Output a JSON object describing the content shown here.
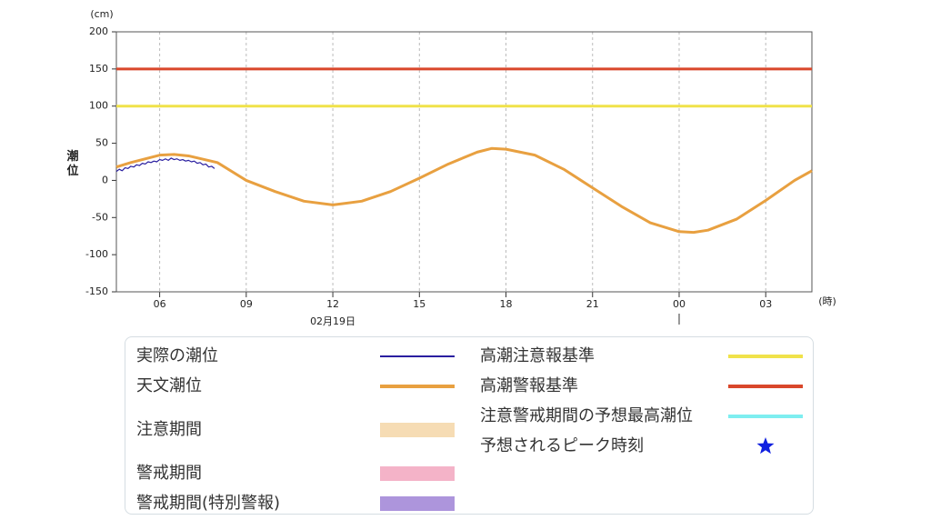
{
  "chart_data": {
    "type": "line",
    "y_label": "潮位",
    "y_unit": "(cm)",
    "x_unit": "(時)",
    "date_label": "02月19日",
    "xlim": [
      4.5,
      28.6
    ],
    "xticks": [
      {
        "value": 6,
        "label": "06"
      },
      {
        "value": 9,
        "label": "09"
      },
      12,
      15,
      18,
      21,
      {
        "value": 24,
        "label": "00"
      },
      {
        "value": 27,
        "label": "03"
      }
    ],
    "date_tick": 12,
    "day_tick": 24,
    "ylim": [
      -150,
      200
    ],
    "yticks": [
      200,
      150,
      100,
      50,
      0,
      -50,
      -100,
      -150
    ],
    "grid": "x",
    "thresholds": [
      {
        "name": "高潮警報基準",
        "value": 150,
        "color": "#d9472b"
      },
      {
        "name": "高潮注意報基準",
        "value": 100,
        "color": "#f0e24a"
      }
    ],
    "series": [
      {
        "name": "天文潮位",
        "color": "#e8a040",
        "width": 3,
        "x": [
          4.5,
          5,
          6,
          6.5,
          7,
          8,
          9,
          10,
          11,
          12,
          13,
          14,
          15,
          16,
          17,
          17.5,
          18,
          19,
          20,
          21,
          22,
          23,
          24,
          24.5,
          25,
          26,
          27,
          28,
          28.6
        ],
        "values": [
          18,
          24,
          34,
          35,
          33,
          24,
          0,
          -15,
          -28,
          -33,
          -28,
          -15,
          3,
          22,
          38,
          43,
          42,
          34,
          15,
          -10,
          -35,
          -57,
          -69,
          -70,
          -67,
          -52,
          -27,
          0,
          13
        ]
      },
      {
        "name": "実際の潮位",
        "color": "#2a1fa0",
        "width": 1.2,
        "x": [
          4.5,
          4.6,
          4.7,
          4.8,
          4.9,
          5.0,
          5.1,
          5.2,
          5.3,
          5.4,
          5.5,
          5.6,
          5.7,
          5.8,
          5.9,
          6.0,
          6.1,
          6.2,
          6.3,
          6.4,
          6.5,
          6.6,
          6.7,
          6.8,
          6.9,
          7.0,
          7.1,
          7.2,
          7.3,
          7.4,
          7.5,
          7.6,
          7.7,
          7.8,
          7.9
        ],
        "values": [
          12,
          15,
          13,
          17,
          16,
          19,
          18,
          21,
          20,
          23,
          22,
          25,
          24,
          26,
          25,
          28,
          27,
          29,
          27,
          30,
          28,
          29,
          27,
          28,
          26,
          27,
          25,
          26,
          23,
          24,
          21,
          22,
          18,
          19,
          16
        ]
      }
    ],
    "legend": {
      "left": [
        {
          "label": "実際の潮位",
          "symbol": "line",
          "color": "#2a1fa0"
        },
        {
          "label": "天文潮位",
          "symbol": "line",
          "color": "#e8a040"
        },
        {
          "label": "注意期間",
          "symbol": "box",
          "color": "#f6dcb4"
        },
        {
          "label": "警戒期間",
          "symbol": "box",
          "color": "#f4b3c8"
        },
        {
          "label": "警戒期間(特別警報)",
          "symbol": "box",
          "color": "#ad95dc"
        }
      ],
      "right": [
        {
          "label": "高潮注意報基準",
          "symbol": "line",
          "color": "#f0e24a"
        },
        {
          "label": "高潮警報基準",
          "symbol": "line",
          "color": "#d9472b"
        },
        {
          "label": "注意警戒期間の予想最高潮位",
          "symbol": "line",
          "color": "#7eeef0"
        },
        {
          "label": "予想されるピーク時刻",
          "symbol": "star",
          "color": "#1020e0"
        }
      ]
    }
  }
}
